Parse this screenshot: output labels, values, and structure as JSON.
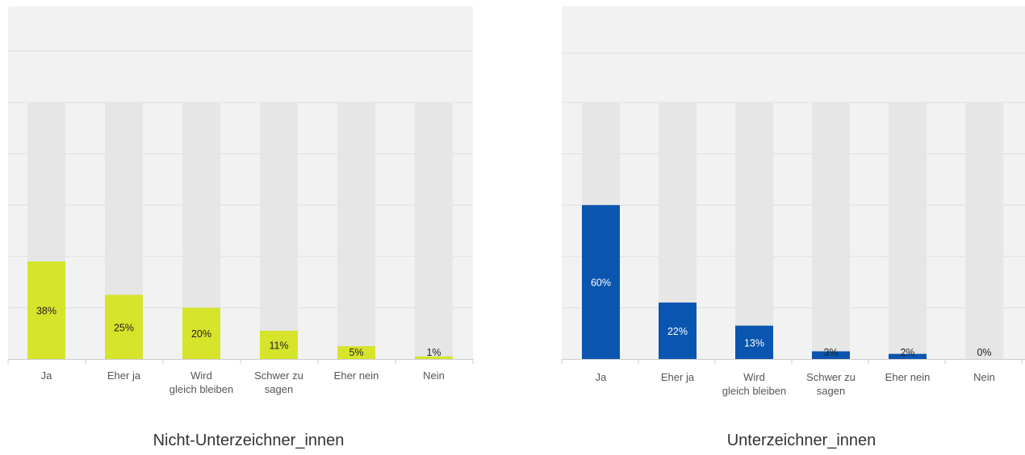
{
  "chart_data": [
    {
      "type": "bar",
      "title": "Nicht-Unterzeichner_innen",
      "categories": [
        [
          "Ja"
        ],
        [
          "Eher ja"
        ],
        [
          "Wird",
          "gleich bleiben"
        ],
        [
          "Schwer zu",
          "sagen"
        ],
        [
          "Eher nein"
        ],
        [
          "Nein"
        ]
      ],
      "values": [
        38,
        25,
        20,
        11,
        5,
        1
      ],
      "value_labels": [
        "38%",
        "25%",
        "20%",
        "11%",
        "5%",
        "1%"
      ],
      "ylim": [
        0,
        100
      ],
      "grid": true,
      "bar_color": "#d6e42b",
      "background_bar_color": "#e6e6e6",
      "value_label_color": "#222222"
    },
    {
      "type": "bar",
      "title": "Unterzeichner_innen",
      "categories": [
        [
          "Ja"
        ],
        [
          "Eher ja"
        ],
        [
          "Wird",
          "gleich bleiben"
        ],
        [
          "Schwer zu",
          "sagen"
        ],
        [
          "Eher nein"
        ],
        [
          "Nein"
        ]
      ],
      "values": [
        60,
        22,
        13,
        3,
        2,
        0
      ],
      "value_labels": [
        "60%",
        "22%",
        "13%",
        "3%",
        "2%",
        "0%"
      ],
      "ylim": [
        0,
        100
      ],
      "grid": true,
      "bar_color": "#0a55b0",
      "background_bar_color": "#e6e6e6",
      "value_label_color": "#ffffff",
      "small_value_label_color": "#222222"
    }
  ],
  "colors": {
    "panel_background": "#f2f2f2",
    "gridline": "#dedede",
    "axis": "#cccccc"
  }
}
